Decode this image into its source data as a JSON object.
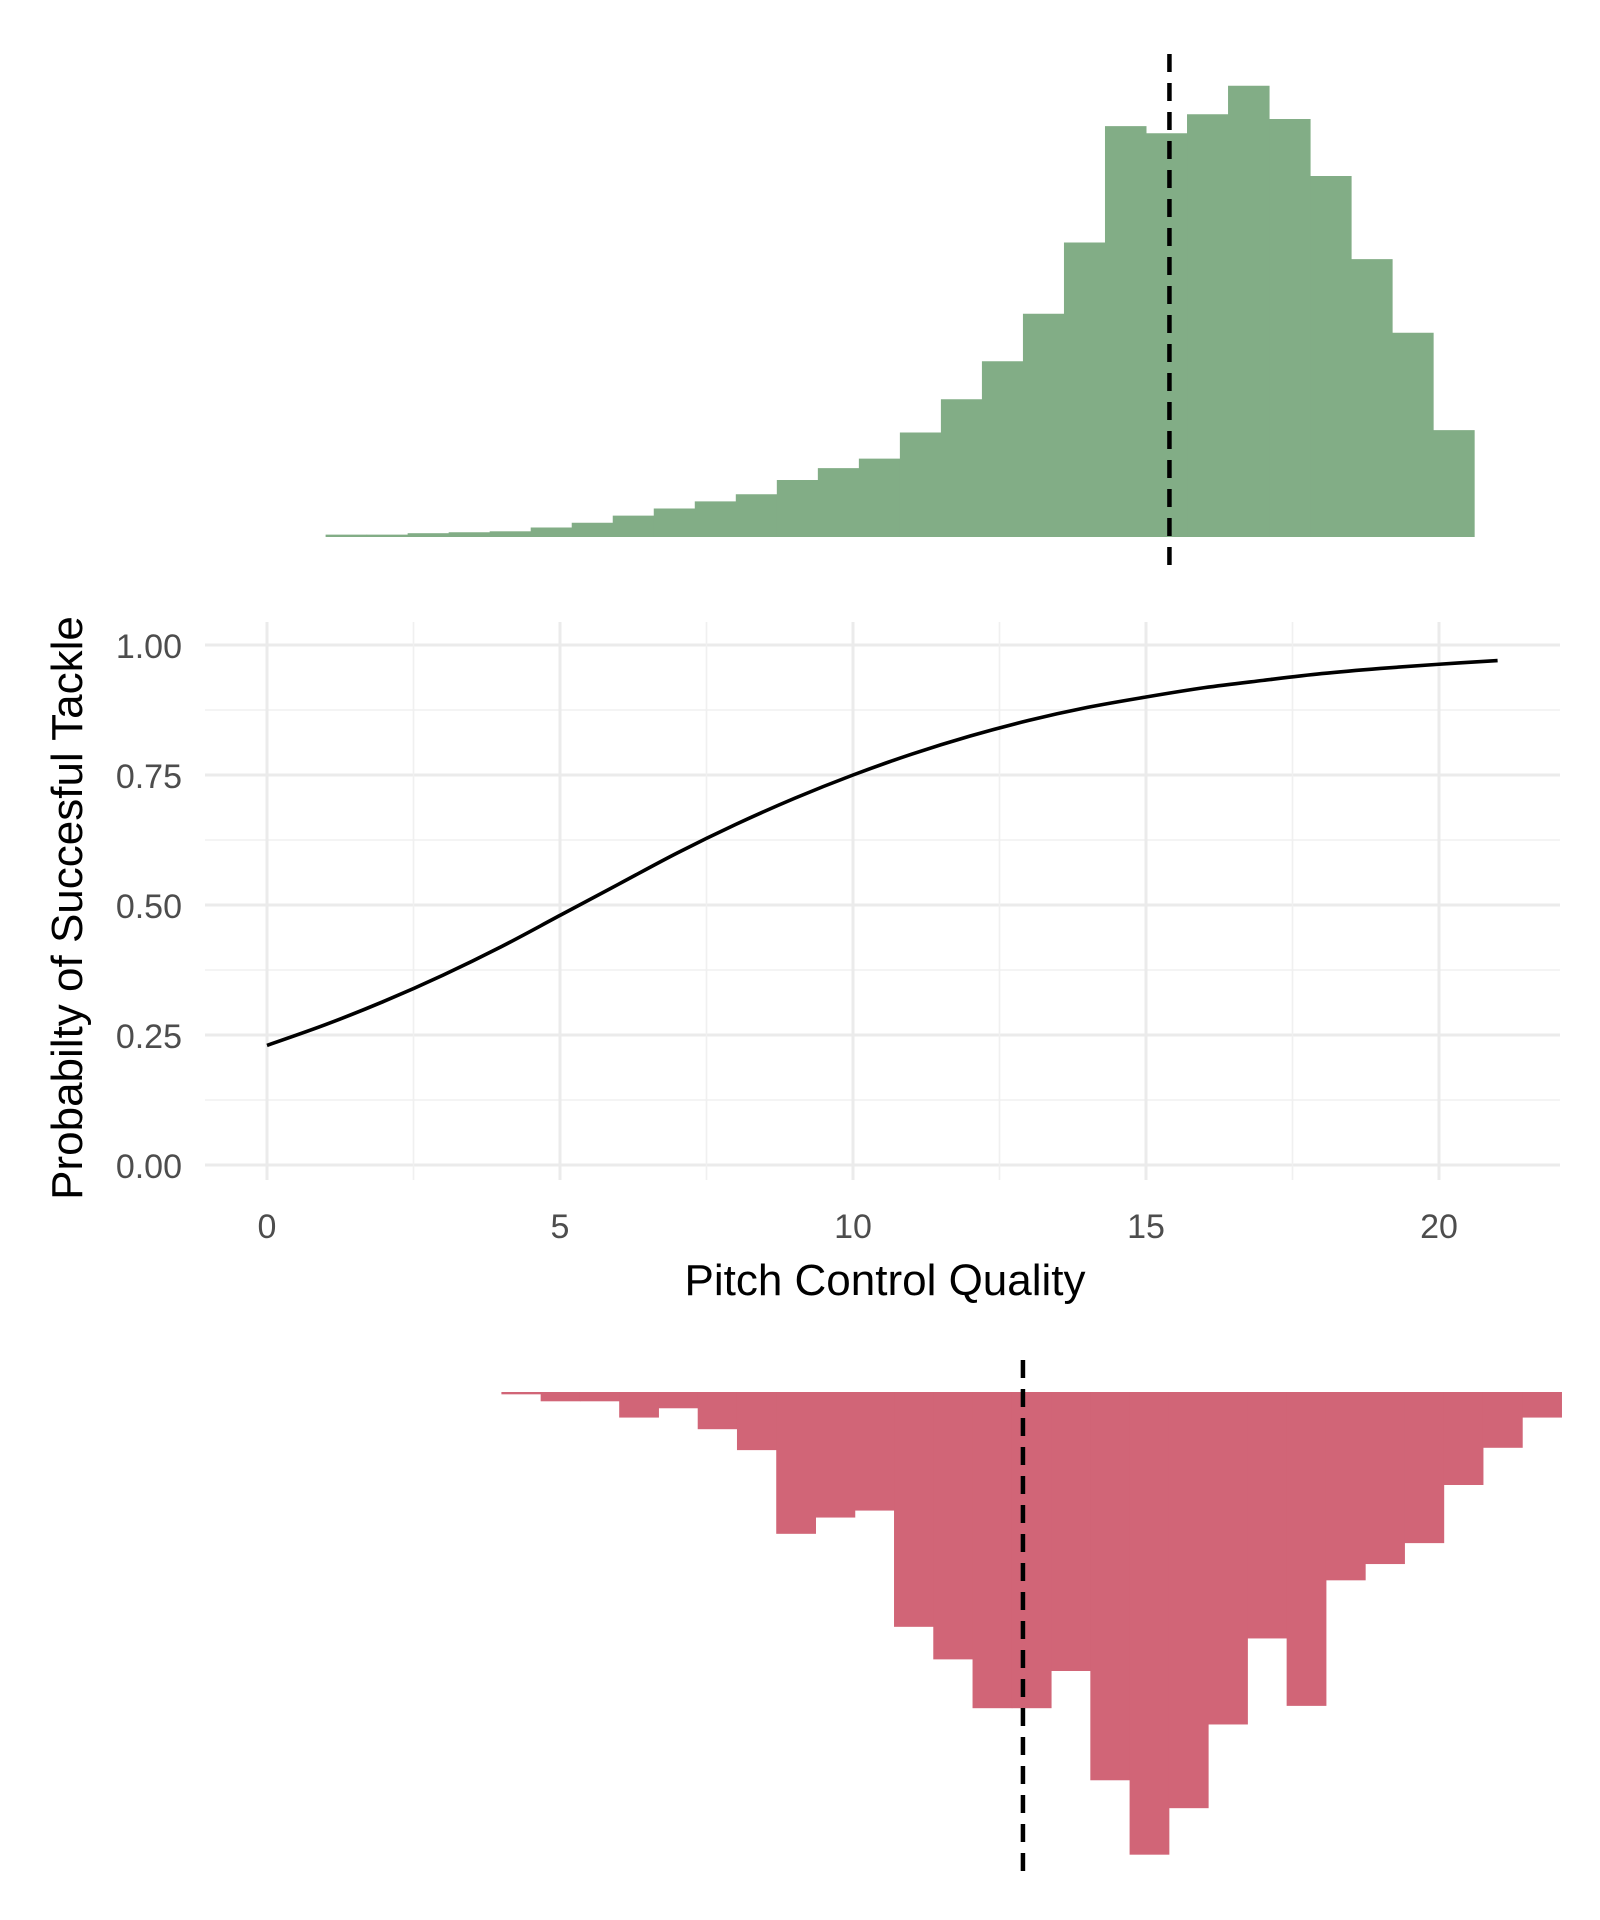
{
  "chart_data": {
    "type": "line",
    "xlabel": "Pitch Control Quality",
    "ylabel": "Probabilty of Succesful Tackle",
    "xlim": [
      -1,
      22
    ],
    "ylim": [
      0,
      1.05
    ],
    "x_ticks": [
      0,
      5,
      10,
      15,
      20
    ],
    "x_tick_labels": [
      "0",
      "5",
      "10",
      "15",
      "20"
    ],
    "y_ticks": [
      0,
      0.25,
      0.5,
      0.75,
      1.0
    ],
    "y_tick_labels": [
      "0.00",
      "0.25",
      "0.50",
      "0.75",
      "1.00"
    ],
    "grid": true,
    "line_color": "#000000",
    "curve": {
      "x": [
        0,
        1,
        2,
        3,
        4,
        5,
        6,
        7,
        8,
        9,
        10,
        11,
        12,
        13,
        14,
        15,
        16,
        17,
        18,
        19,
        20,
        21
      ],
      "y": [
        0.23,
        0.27,
        0.315,
        0.365,
        0.42,
        0.48,
        0.54,
        0.6,
        0.655,
        0.705,
        0.75,
        0.79,
        0.825,
        0.855,
        0.88,
        0.9,
        0.918,
        0.932,
        0.945,
        0.955,
        0.963,
        0.97
      ]
    },
    "top_histogram": {
      "color": "#82ad86",
      "bin_start": 1.0,
      "bin_width": 0.7,
      "counts": [
        0.005,
        0.005,
        0.008,
        0.01,
        0.012,
        0.02,
        0.03,
        0.045,
        0.06,
        0.075,
        0.09,
        0.12,
        0.145,
        0.165,
        0.22,
        0.29,
        0.37,
        0.47,
        0.62,
        0.865,
        0.85,
        0.89,
        0.95,
        0.88,
        0.76,
        0.585,
        0.43,
        0.225
      ],
      "mean_x": 15.4
    },
    "bottom_histogram": {
      "color": "#d16577",
      "bin_start": 4.0,
      "bin_width": 0.67,
      "counts": [
        0.005,
        0.02,
        0.02,
        0.055,
        0.035,
        0.08,
        0.125,
        0.305,
        0.27,
        0.255,
        0.505,
        0.575,
        0.68,
        0.68,
        0.6,
        0.835,
        0.995,
        0.895,
        0.715,
        0.53,
        0.675,
        0.405,
        0.37,
        0.325,
        0.2,
        0.12,
        0.055
      ],
      "mean_x": 12.9
    }
  }
}
